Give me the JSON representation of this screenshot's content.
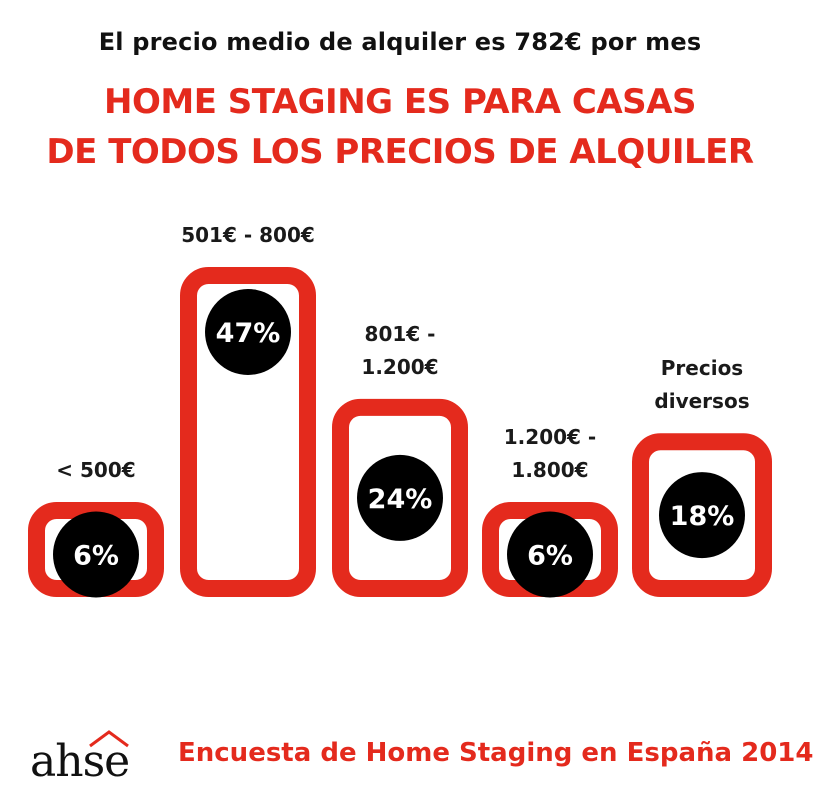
{
  "header": {
    "subtitle": "El precio medio de alquiler es 782€ por mes",
    "title_line1": "HOME STAGING ES PARA CASAS",
    "title_line2": "DE TODOS LOS PRECIOS DE ALQUILER"
  },
  "chart_data": {
    "type": "bar",
    "categories": [
      [
        "< 500€"
      ],
      [
        "501€ - 800€"
      ],
      [
        "801€ -",
        "1.200€"
      ],
      [
        "1.200€ -",
        "1.800€"
      ],
      [
        "Precios",
        "diversos"
      ]
    ],
    "values": [
      6,
      47,
      24,
      6,
      18
    ],
    "value_labels": [
      "6%",
      "47%",
      "24%",
      "6%",
      "18%"
    ],
    "ylim": [
      0,
      47
    ],
    "grid": false,
    "title": "",
    "xlabel": "",
    "ylabel": ""
  },
  "colors": {
    "accent": "#e42a1d",
    "bubble": "#000000",
    "text": "#1a1a1a"
  },
  "footer": {
    "logo_text": "ahse",
    "caption": "Encuesta de Home Staging en España 2014"
  }
}
